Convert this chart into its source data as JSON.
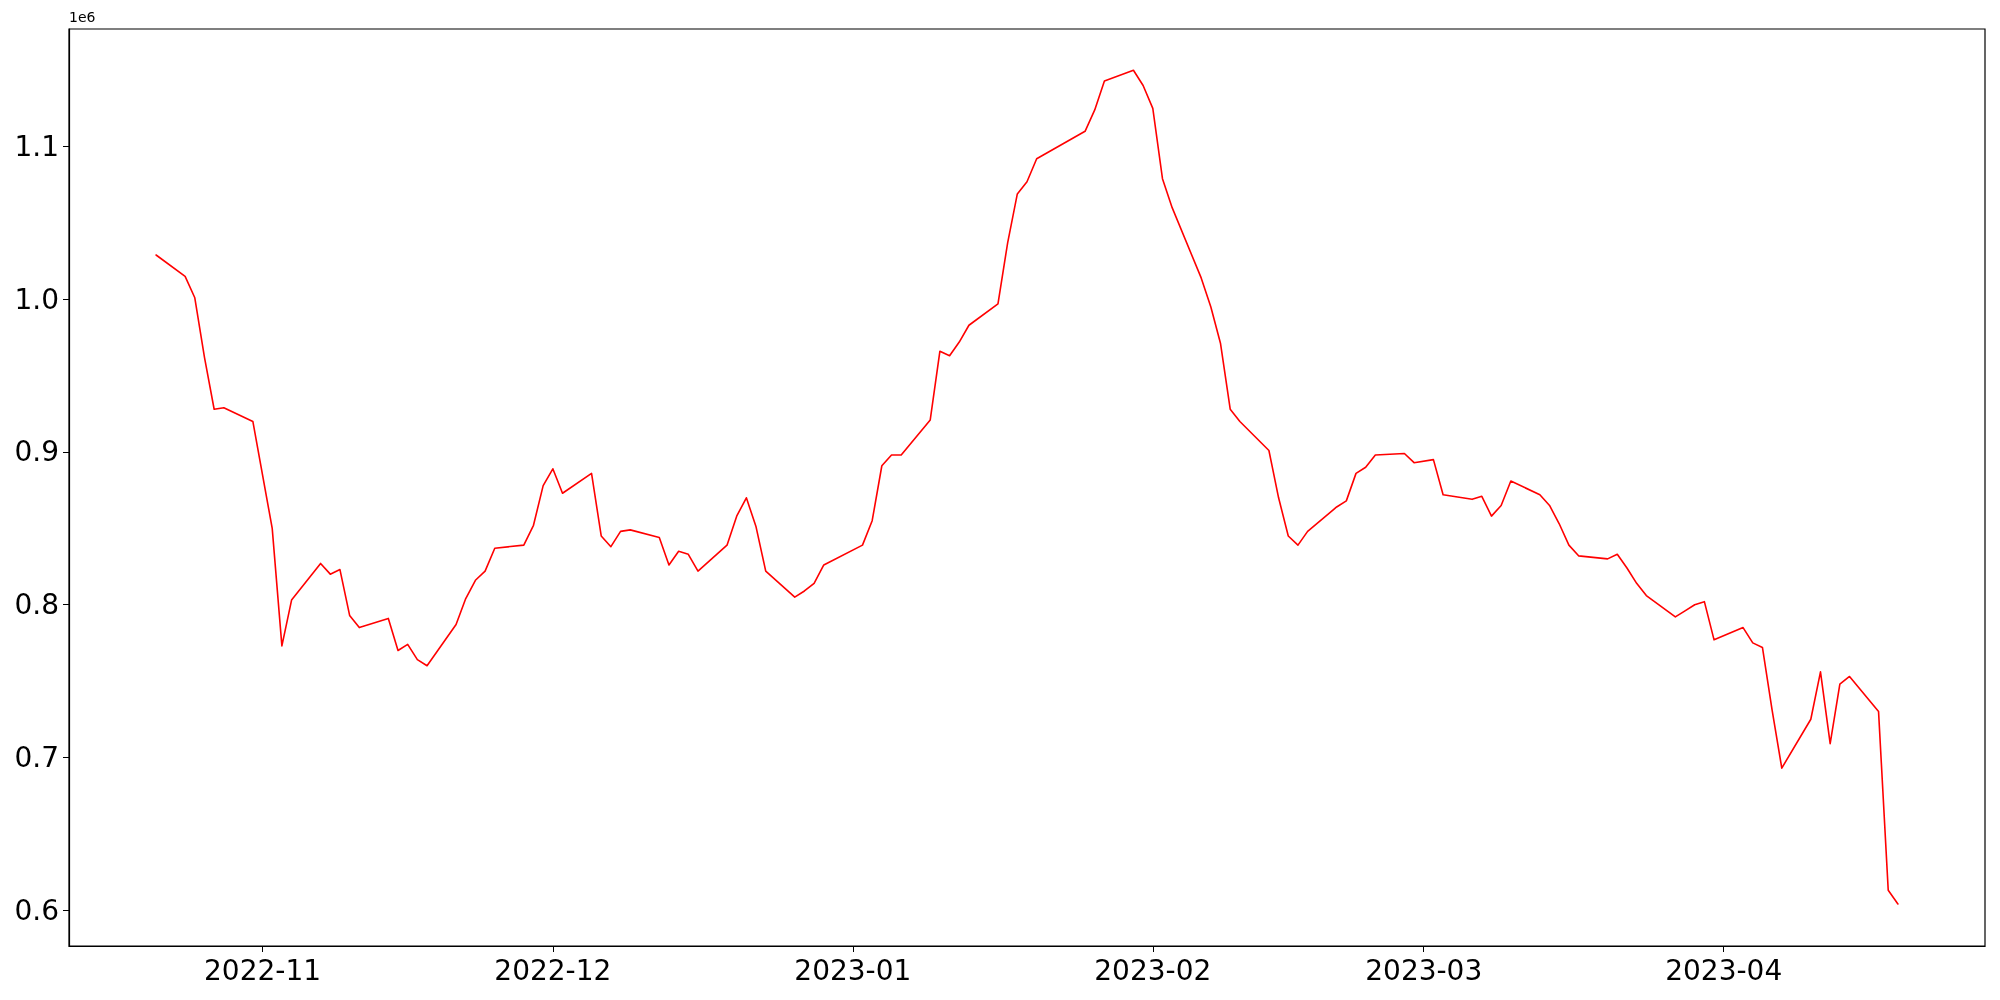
{
  "chart_data": {
    "type": "line",
    "annotations": [
      "1e6"
    ],
    "x": [
      "2022-10-21",
      "2022-10-24",
      "2022-10-25",
      "2022-10-26",
      "2022-10-27",
      "2022-10-28",
      "2022-10-31",
      "2022-11-02",
      "2022-11-03",
      "2022-11-04",
      "2022-11-07",
      "2022-11-08",
      "2022-11-09",
      "2022-11-10",
      "2022-11-11",
      "2022-11-14",
      "2022-11-15",
      "2022-11-16",
      "2022-11-17",
      "2022-11-18",
      "2022-11-21",
      "2022-11-22",
      "2022-11-23",
      "2022-11-24",
      "2022-11-25",
      "2022-11-28",
      "2022-11-29",
      "2022-11-30",
      "2022-12-01",
      "2022-12-02",
      "2022-12-05",
      "2022-12-06",
      "2022-12-07",
      "2022-12-08",
      "2022-12-09",
      "2022-12-12",
      "2022-12-13",
      "2022-12-14",
      "2022-12-15",
      "2022-12-16",
      "2022-12-19",
      "2022-12-20",
      "2022-12-21",
      "2022-12-22",
      "2022-12-23",
      "2022-12-26",
      "2022-12-27",
      "2022-12-28",
      "2022-12-29",
      "2023-01-02",
      "2023-01-03",
      "2023-01-04",
      "2023-01-05",
      "2023-01-06",
      "2023-01-09",
      "2023-01-10",
      "2023-01-11",
      "2023-01-12",
      "2023-01-13",
      "2023-01-16",
      "2023-01-17",
      "2023-01-18",
      "2023-01-19",
      "2023-01-20",
      "2023-01-25",
      "2023-01-26",
      "2023-01-27",
      "2023-01-30",
      "2023-01-31",
      "2023-02-01",
      "2023-02-02",
      "2023-02-03",
      "2023-02-06",
      "2023-02-07",
      "2023-02-08",
      "2023-02-09",
      "2023-02-10",
      "2023-02-13",
      "2023-02-14",
      "2023-02-15",
      "2023-02-16",
      "2023-02-17",
      "2023-02-20",
      "2023-02-21",
      "2023-02-22",
      "2023-02-23",
      "2023-02-24",
      "2023-02-27",
      "2023-02-28",
      "2023-03-02",
      "2023-03-03",
      "2023-03-06",
      "2023-03-07",
      "2023-03-08",
      "2023-03-09",
      "2023-03-10",
      "2023-03-13",
      "2023-03-14",
      "2023-03-15",
      "2023-03-16",
      "2023-03-17",
      "2023-03-20",
      "2023-03-21",
      "2023-03-22",
      "2023-03-23",
      "2023-03-24",
      "2023-03-27",
      "2023-03-28",
      "2023-03-29",
      "2023-03-30",
      "2023-03-31",
      "2023-04-03",
      "2023-04-04",
      "2023-04-05",
      "2023-04-06",
      "2023-04-07",
      "2023-04-10",
      "2023-04-11",
      "2023-04-12",
      "2023-04-13",
      "2023-04-14",
      "2023-04-17",
      "2023-04-18",
      "2023-04-19"
    ],
    "series": [
      {
        "color": "#ff0000",
        "values": [
          1.029,
          1.015,
          1.001,
          0.962,
          0.928,
          0.929,
          0.92,
          0.85,
          0.773,
          0.803,
          0.827,
          0.82,
          0.823,
          0.793,
          0.785,
          0.791,
          0.77,
          0.774,
          0.764,
          0.76,
          0.787,
          0.804,
          0.816,
          0.822,
          0.837,
          0.839,
          0.852,
          0.878,
          0.889,
          0.873,
          0.886,
          0.845,
          0.838,
          0.848,
          0.849,
          0.844,
          0.826,
          0.835,
          0.833,
          0.822,
          0.839,
          0.858,
          0.87,
          0.851,
          0.822,
          0.805,
          0.809,
          0.814,
          0.826,
          0.839,
          0.855,
          0.891,
          0.898,
          0.898,
          0.921,
          0.966,
          0.963,
          0.972,
          0.983,
          0.997,
          1.037,
          1.069,
          1.077,
          1.092,
          1.11,
          1.124,
          1.143,
          1.15,
          1.14,
          1.125,
          1.079,
          1.06,
          1.014,
          0.995,
          0.971,
          0.928,
          0.92,
          0.901,
          0.87,
          0.845,
          0.839,
          0.848,
          0.864,
          0.868,
          0.886,
          0.89,
          0.898,
          0.899,
          0.893,
          0.895,
          0.872,
          0.869,
          0.871,
          0.858,
          0.865,
          0.881,
          0.872,
          0.865,
          0.853,
          0.839,
          0.832,
          0.83,
          0.833,
          0.824,
          0.814,
          0.806,
          0.792,
          0.796,
          0.8,
          0.802,
          0.777,
          0.785,
          0.775,
          0.772,
          0.731,
          0.693,
          0.725,
          0.756,
          0.709,
          0.748,
          0.753,
          0.73,
          0.613,
          0.604
        ]
      }
    ],
    "xlim": [
      "2022-10-12",
      "2023-04-28"
    ],
    "xticks": [
      "2022-11",
      "2022-12",
      "2023-01",
      "2023-02",
      "2023-03",
      "2023-04"
    ],
    "ylim": [
      0.5765,
      1.177
    ],
    "yticks": [
      0.6,
      0.7,
      0.8,
      0.9,
      {
        "value": 1,
        "label": "1.0"
      },
      1.1
    ],
    "grid": false,
    "marker": "none",
    "line_style": "solid"
  }
}
